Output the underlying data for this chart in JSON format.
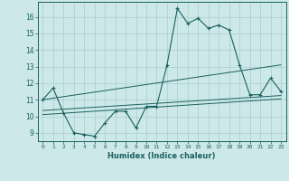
{
  "xlabel": "Humidex (Indice chaleur)",
  "background_color": "#cce8e8",
  "grid_color": "#aacece",
  "line_color": "#1a6060",
  "xlim": [
    -0.5,
    23.5
  ],
  "ylim": [
    8.5,
    16.9
  ],
  "yticks": [
    9,
    10,
    11,
    12,
    13,
    14,
    15,
    16
  ],
  "xticks": [
    0,
    1,
    2,
    3,
    4,
    5,
    6,
    7,
    8,
    9,
    10,
    11,
    12,
    13,
    14,
    15,
    16,
    17,
    18,
    19,
    20,
    21,
    22,
    23
  ],
  "line1_x": [
    0,
    1,
    2,
    3,
    4,
    5,
    6,
    7,
    8,
    9,
    10,
    11,
    12,
    13,
    14,
    15,
    16,
    17,
    18,
    19,
    20,
    21,
    22,
    23
  ],
  "line1_y": [
    11.0,
    11.7,
    10.2,
    9.0,
    8.9,
    8.8,
    9.6,
    10.3,
    10.3,
    9.3,
    10.6,
    10.6,
    13.1,
    16.5,
    15.6,
    15.9,
    15.3,
    15.5,
    15.2,
    13.1,
    11.3,
    11.3,
    12.3,
    11.5
  ],
  "line2_x": [
    0,
    23
  ],
  "line2_y": [
    10.1,
    11.05
  ],
  "line3_x": [
    0,
    23
  ],
  "line3_y": [
    10.35,
    11.25
  ],
  "line4_x": [
    0,
    23
  ],
  "line4_y": [
    11.0,
    13.1
  ]
}
